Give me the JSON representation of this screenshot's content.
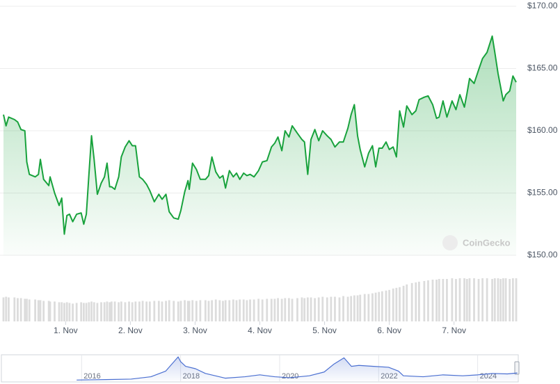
{
  "chart_data": [
    {
      "type": "line",
      "color": "#18a23c",
      "volume_color": "#dcdcdc",
      "grid": true,
      "watermark": "CoinGecko",
      "xlim": [
        0.04,
        7.96
      ],
      "xticks": [
        {
          "value": 1,
          "label": "1. Nov"
        },
        {
          "value": 2,
          "label": "2. Nov"
        },
        {
          "value": 3,
          "label": "3. Nov"
        },
        {
          "value": 4,
          "label": "4. Nov"
        },
        {
          "value": 5,
          "label": "5. Nov"
        },
        {
          "value": 6,
          "label": "6. Nov"
        },
        {
          "value": 7,
          "label": "7. Nov"
        }
      ],
      "ylim": [
        150,
        170
      ],
      "yticks": [
        {
          "value": 150,
          "label": "$150.00"
        },
        {
          "value": 155,
          "label": "$155.00"
        },
        {
          "value": 160,
          "label": "$160.00"
        },
        {
          "value": 165,
          "label": "$165.00"
        },
        {
          "value": 170,
          "label": "$170.00"
        }
      ],
      "x": [
        0.04,
        0.08,
        0.12,
        0.21,
        0.26,
        0.31,
        0.37,
        0.4,
        0.44,
        0.53,
        0.58,
        0.61,
        0.66,
        0.74,
        0.76,
        0.83,
        0.9,
        0.94,
        0.98,
        1.02,
        1.06,
        1.11,
        1.17,
        1.24,
        1.28,
        1.32,
        1.36,
        1.4,
        1.44,
        1.49,
        1.55,
        1.6,
        1.64,
        1.68,
        1.71,
        1.76,
        1.82,
        1.86,
        1.92,
        1.98,
        2.03,
        2.08,
        2.14,
        2.19,
        2.25,
        2.3,
        2.37,
        2.44,
        2.49,
        2.55,
        2.6,
        2.67,
        2.74,
        2.78,
        2.84,
        2.89,
        2.91,
        2.96,
        3.02,
        3.08,
        3.16,
        3.21,
        3.26,
        3.32,
        3.38,
        3.43,
        3.47,
        3.53,
        3.59,
        3.64,
        3.69,
        3.75,
        3.8,
        3.85,
        3.91,
        3.98,
        4.04,
        4.11,
        4.18,
        4.23,
        4.28,
        4.34,
        4.39,
        4.45,
        4.5,
        4.58,
        4.65,
        4.69,
        4.74,
        4.79,
        4.85,
        4.91,
        4.97,
        5.04,
        5.1,
        5.16,
        5.23,
        5.29,
        5.36,
        5.41,
        5.46,
        5.51,
        5.55,
        5.62,
        5.68,
        5.74,
        5.79,
        5.84,
        5.89,
        5.95,
        6.0,
        6.06,
        6.11,
        6.16,
        6.22,
        6.27,
        6.35,
        6.41,
        6.46,
        6.54,
        6.6,
        6.67,
        6.73,
        6.77,
        6.83,
        6.89,
        6.97,
        7.03,
        7.09,
        7.16,
        7.2,
        7.24,
        7.31,
        7.38,
        7.44,
        7.51,
        7.59,
        7.63,
        7.68,
        7.72,
        7.76,
        7.8,
        7.86,
        7.91,
        7.96
      ],
      "values": [
        161.3,
        160.4,
        161.1,
        160.9,
        160.7,
        160.1,
        160.0,
        157.5,
        156.5,
        156.3,
        156.5,
        157.7,
        156.1,
        155.6,
        156.3,
        155.0,
        154.0,
        154.6,
        151.7,
        153.2,
        153.3,
        152.7,
        153.3,
        153.4,
        152.5,
        153.3,
        156.5,
        159.6,
        157.7,
        154.9,
        155.8,
        156.3,
        157.4,
        155.5,
        155.5,
        155.3,
        156.3,
        157.9,
        158.7,
        159.2,
        158.8,
        158.8,
        156.3,
        156.1,
        155.7,
        155.2,
        154.3,
        154.9,
        154.5,
        154.9,
        153.5,
        153.0,
        152.9,
        153.6,
        155.1,
        156.0,
        155.3,
        157.4,
        156.9,
        156.1,
        156.1,
        156.4,
        157.9,
        156.7,
        156.2,
        156.4,
        155.4,
        156.8,
        156.3,
        156.6,
        156.1,
        156.6,
        156.4,
        156.5,
        156.3,
        156.8,
        157.5,
        157.6,
        158.7,
        159.0,
        159.5,
        158.4,
        160.0,
        159.5,
        160.4,
        159.8,
        159.3,
        159.1,
        156.5,
        159.3,
        160.1,
        159.2,
        160.0,
        159.6,
        159.3,
        158.7,
        159.1,
        159.1,
        160.2,
        161.3,
        162.1,
        159.6,
        158.5,
        157.1,
        158.2,
        158.8,
        157.1,
        158.6,
        158.6,
        159.1,
        158.5,
        158.7,
        157.9,
        161.6,
        160.3,
        162.0,
        161.3,
        161.6,
        162.5,
        162.7,
        162.8,
        162.1,
        161.0,
        161.1,
        162.4,
        161.1,
        162.4,
        161.7,
        162.9,
        161.9,
        163.0,
        164.2,
        163.8,
        164.9,
        165.8,
        166.3,
        167.6,
        166.3,
        164.6,
        163.5,
        162.4,
        162.9,
        163.2,
        164.4,
        163.9
      ],
      "volume": [
        35,
        36,
        35,
        35,
        34,
        34,
        33,
        33,
        32,
        32,
        31,
        31,
        30,
        30,
        29,
        29,
        28,
        28,
        27,
        28,
        27,
        26,
        27,
        28,
        27,
        27,
        28,
        29,
        28,
        27,
        28,
        28,
        29,
        28,
        29,
        29,
        28,
        29,
        28,
        29,
        28,
        29,
        29,
        30,
        29,
        29,
        30,
        30,
        29,
        30,
        31,
        30,
        29,
        30,
        31,
        30,
        30,
        31,
        30,
        31,
        31,
        30,
        31,
        32,
        31,
        30,
        31,
        31,
        32,
        31,
        32,
        32,
        31,
        32,
        32,
        33,
        32,
        33,
        33,
        33,
        34,
        33,
        34,
        34,
        33,
        34,
        35,
        34,
        35,
        35,
        34,
        35,
        36,
        35,
        36,
        36,
        35,
        37,
        36,
        37,
        38,
        38,
        39,
        40,
        40,
        41,
        42,
        43,
        44,
        45,
        46,
        48,
        49,
        50,
        52,
        54,
        56,
        57,
        58,
        59,
        60,
        61,
        61,
        62,
        62,
        62,
        63,
        62,
        63,
        63,
        62,
        63,
        63,
        62,
        63,
        63,
        62,
        63,
        63,
        62,
        63,
        63,
        62,
        63,
        63
      ]
    },
    {
      "type": "line",
      "color": "#4a6fd1",
      "xlim": [
        2014.38,
        2024.82
      ],
      "xticks": [
        2016,
        2018,
        2020,
        2022,
        2024
      ],
      "x": [
        2015.9,
        2016.5,
        2017.0,
        2017.4,
        2017.7,
        2017.95,
        2018.0,
        2018.1,
        2018.3,
        2018.5,
        2018.9,
        2019.3,
        2019.6,
        2019.9,
        2020.2,
        2020.6,
        2020.9,
        2021.1,
        2021.3,
        2021.45,
        2021.6,
        2021.9,
        2022.2,
        2022.4,
        2022.5,
        2022.9,
        2023.3,
        2023.7,
        2024.0,
        2024.3,
        2024.6,
        2024.8
      ],
      "values": [
        1,
        2,
        3,
        8,
        20,
        50,
        40,
        30,
        25,
        15,
        5,
        8,
        12,
        8,
        6,
        10,
        18,
        35,
        48,
        30,
        32,
        30,
        28,
        20,
        10,
        8,
        12,
        10,
        12,
        15,
        14,
        16
      ]
    }
  ]
}
